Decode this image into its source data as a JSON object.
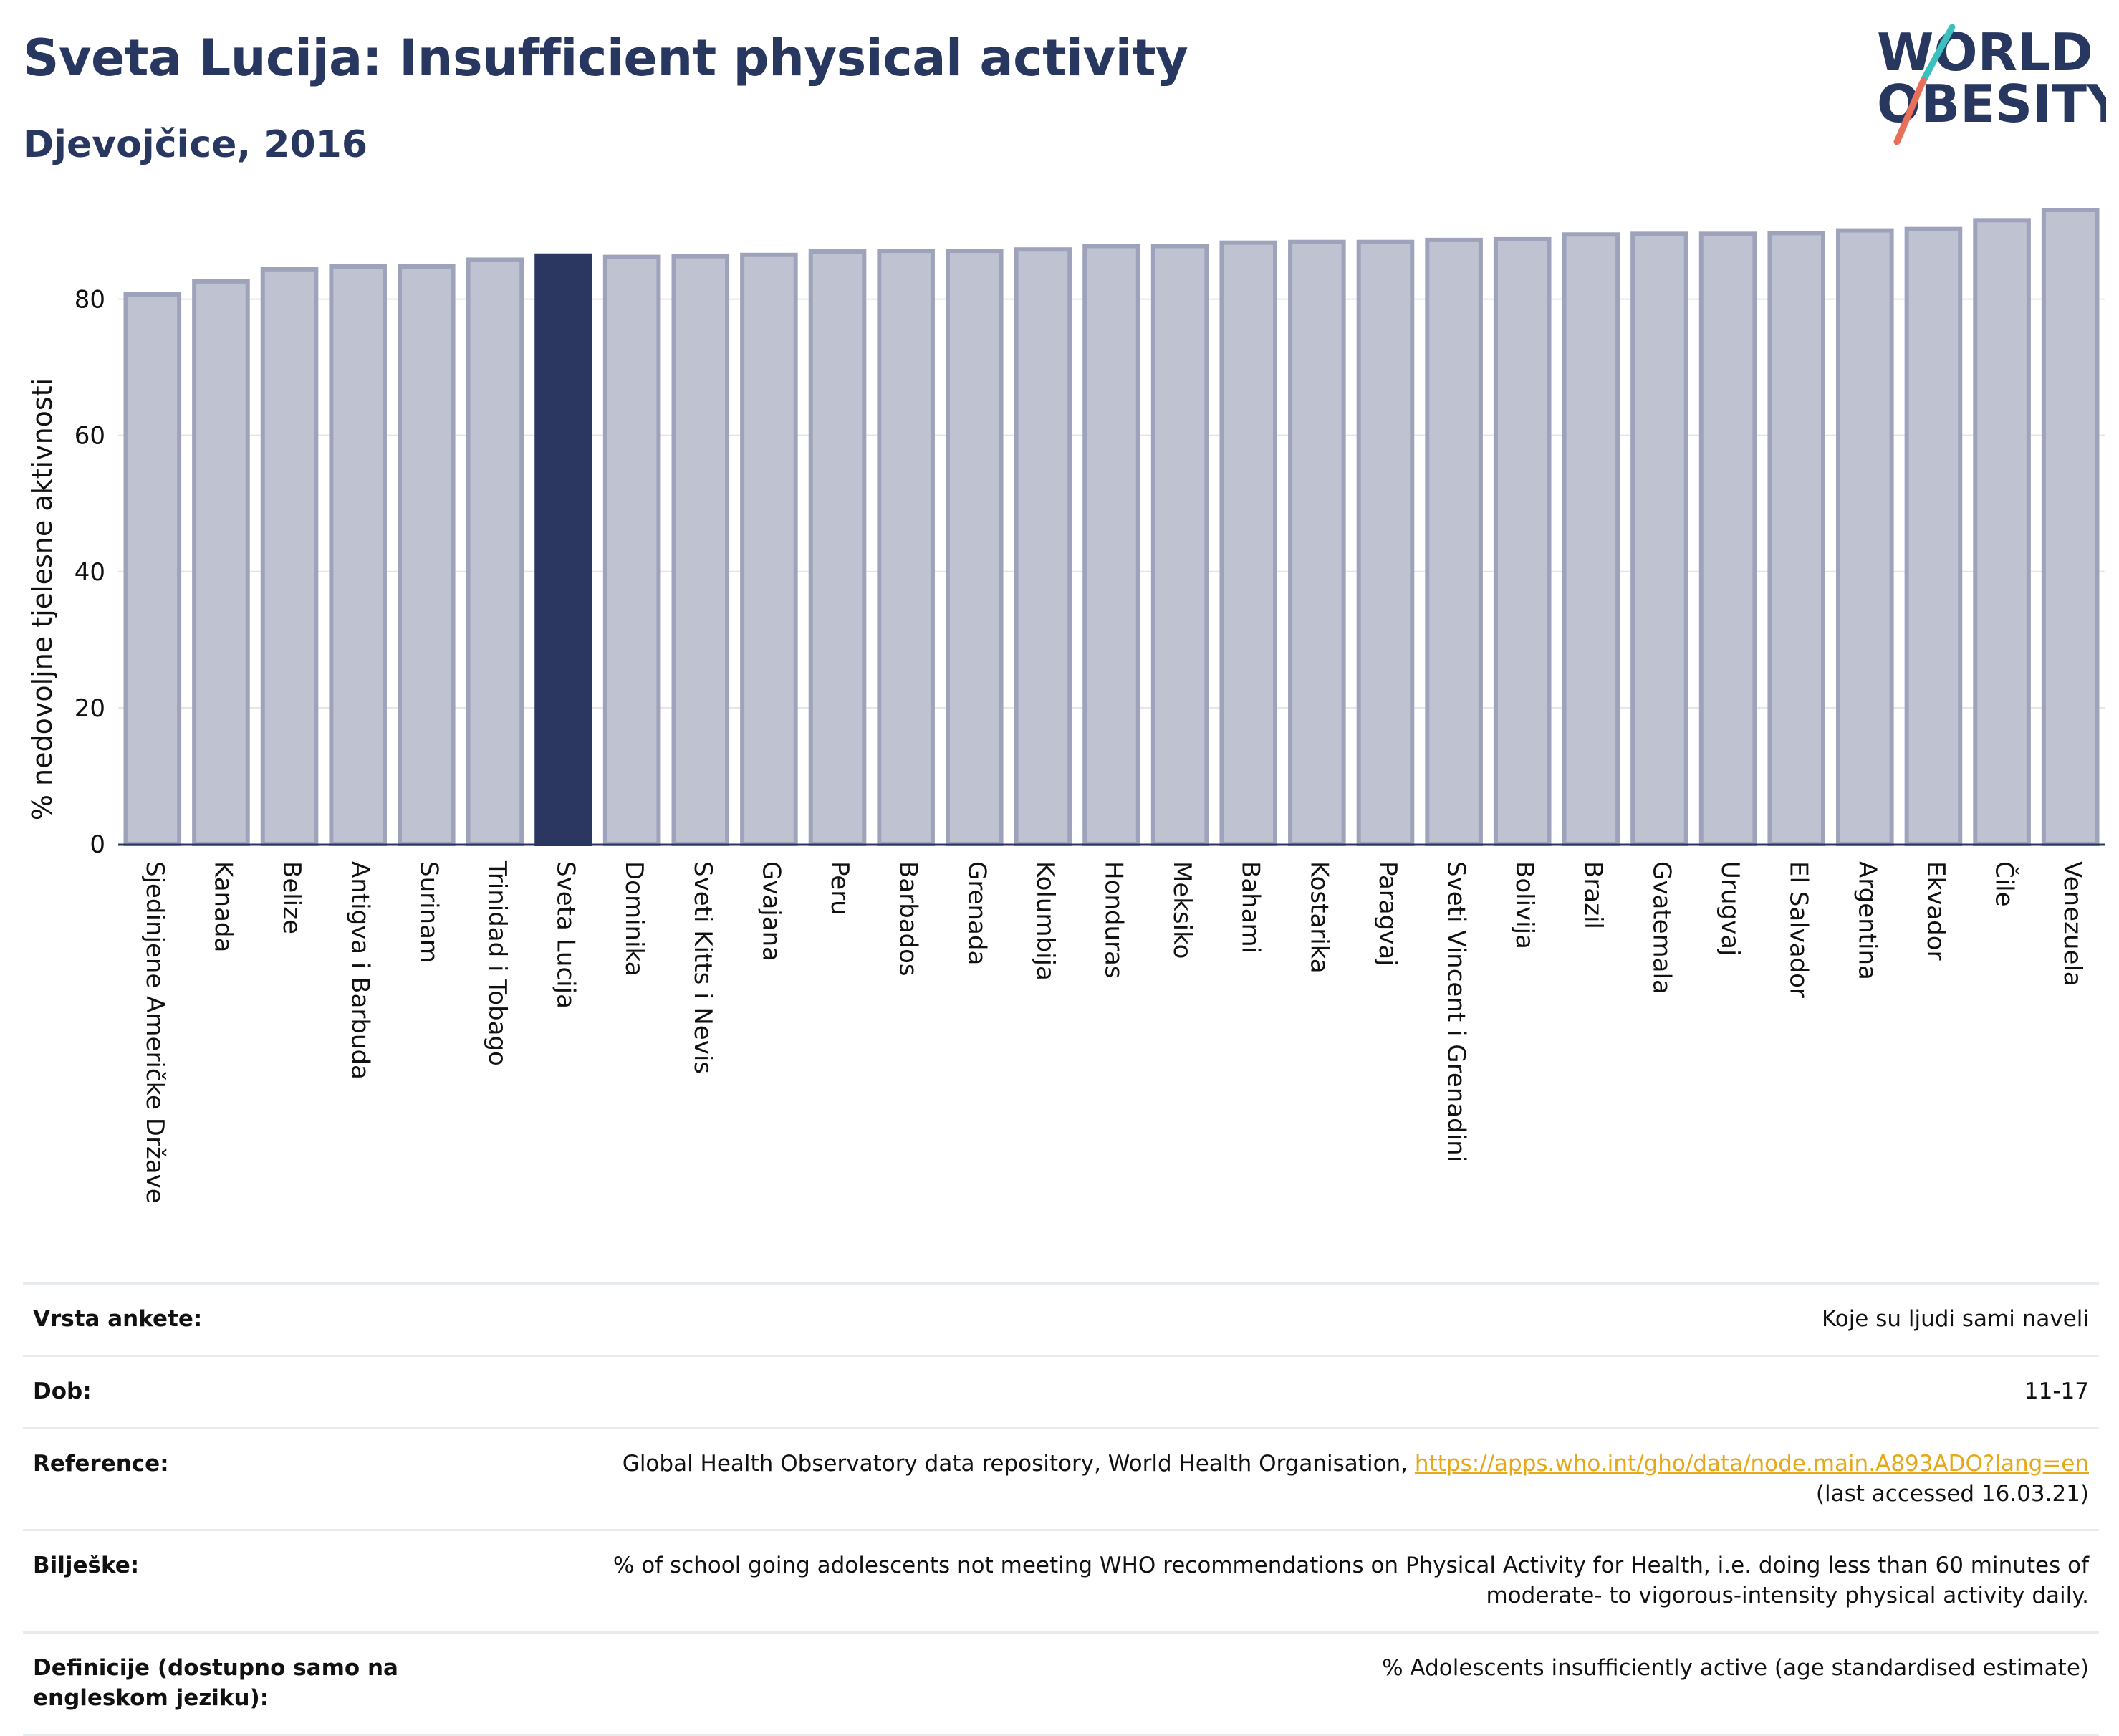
{
  "header": {
    "title": "Sveta Lucija: Insufficient physical activity",
    "subtitle": "Djevojčice, 2016",
    "logo_line1": "WORLD",
    "logo_line2": "OBESITY"
  },
  "colors": {
    "title": "#283760",
    "bar_default": "#bfc2d0",
    "bar_default_stroke": "#9ea3bb",
    "bar_highlight": "#2b3760",
    "logo_teal": "#3bbfbf",
    "logo_coral": "#e8705a",
    "link": "#e6a817"
  },
  "chart_data": {
    "type": "bar",
    "ylabel": "% nedovoljne tjelesne aktivnosti",
    "ylim": [
      0,
      95
    ],
    "yticks": [
      0,
      20,
      40,
      60,
      80
    ],
    "grid": true,
    "highlight": "Sveta Lucija",
    "categories": [
      "Sjedinjene Američke Države",
      "Kanada",
      "Belize",
      "Antigva i Barbuda",
      "Surinam",
      "Trinidad i Tobago",
      "Sveta Lucija",
      "Dominika",
      "Sveti Kitts i Nevis",
      "Gvajana",
      "Peru",
      "Barbados",
      "Grenada",
      "Kolumbija",
      "Honduras",
      "Meksiko",
      "Bahami",
      "Kostarika",
      "Paragvaj",
      "Sveti Vincent i Grenadini",
      "Bolivija",
      "Brazil",
      "Gvatemala",
      "Urugvaj",
      "El Salvador",
      "Argentina",
      "Ekvador",
      "Čile",
      "Venezuela"
    ],
    "values": [
      80.7,
      82.6,
      84.4,
      84.8,
      84.8,
      85.8,
      86.4,
      86.2,
      86.3,
      86.5,
      87.0,
      87.1,
      87.1,
      87.3,
      87.8,
      87.8,
      88.3,
      88.4,
      88.4,
      88.7,
      88.8,
      89.5,
      89.6,
      89.6,
      89.7,
      90.1,
      90.3,
      91.6,
      93.1
    ]
  },
  "info": {
    "survey_type_label": "Vrsta ankete:",
    "survey_type_value": "Koje su ljudi sami naveli",
    "age_label": "Dob:",
    "age_value": "11-17",
    "reference_label": "Reference:",
    "reference_text": "Global Health Observatory data repository, World Health Organisation, ",
    "reference_link": "https://apps.who.int/gho/data/node.main.A893ADO?lang=en",
    "reference_accessed": "(last accessed 16.03.21)",
    "notes_label": "Bilješke:",
    "notes_value": "% of school going adolescents not meeting WHO recommendations on Physical Activity for Health, i.e. doing less than 60 minutes of moderate- to vigorous-intensity physical activity daily.",
    "definitions_label": "Definicije (dostupno samo na engleskom jeziku):",
    "definitions_value": "% Adolescents insufficiently active (age standardised estimate)"
  }
}
